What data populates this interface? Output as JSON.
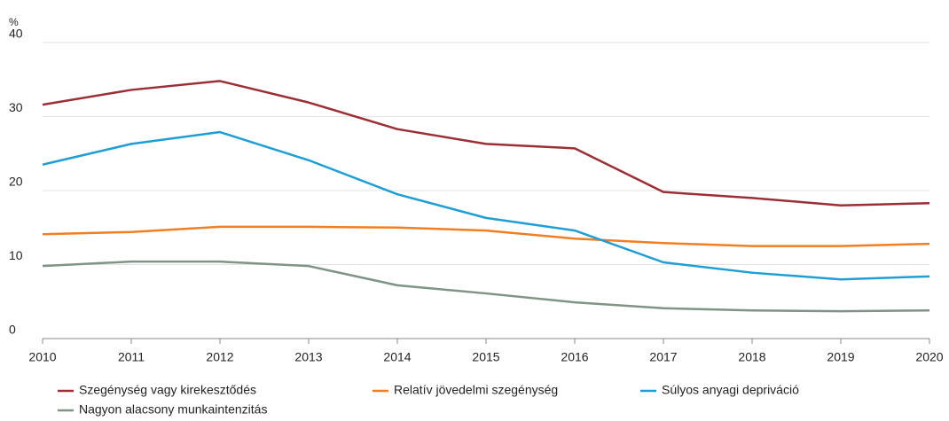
{
  "chart_data": {
    "type": "line",
    "y_label": "%",
    "x": [
      2010,
      2011,
      2012,
      2013,
      2014,
      2015,
      2016,
      2017,
      2018,
      2019,
      2020
    ],
    "xlim": [
      2010,
      2020
    ],
    "xticks": [
      2010,
      2011,
      2012,
      2013,
      2014,
      2015,
      2016,
      2017,
      2018,
      2019,
      2020
    ],
    "ylim": [
      0,
      40
    ],
    "yticks": [
      0,
      10,
      20,
      30,
      40
    ],
    "grid": true,
    "legend": "bottom",
    "series": [
      {
        "name": "Szegénység vagy kirekesztődés",
        "color": "#9b2f35",
        "values": [
          31.6,
          33.6,
          34.8,
          31.9,
          28.3,
          26.3,
          25.7,
          19.8,
          19.0,
          18.0,
          18.3
        ]
      },
      {
        "name": "Relatív jövedelmi szegénység",
        "color": "#f07f23",
        "values": [
          14.1,
          14.4,
          15.1,
          15.1,
          15.0,
          14.6,
          13.5,
          12.9,
          12.5,
          12.5,
          12.8
        ]
      },
      {
        "name": "Súlyos anyagi depriváció",
        "color": "#1f9ed6",
        "values": [
          23.5,
          26.3,
          27.9,
          24.1,
          19.5,
          16.3,
          14.6,
          10.3,
          8.9,
          8.0,
          8.4
        ]
      },
      {
        "name": "Nagyon alacsony munkaintenzitás",
        "color": "#7f9485",
        "values": [
          9.8,
          10.4,
          10.4,
          9.8,
          7.2,
          6.1,
          4.9,
          4.1,
          3.8,
          3.7,
          3.8
        ]
      }
    ]
  }
}
